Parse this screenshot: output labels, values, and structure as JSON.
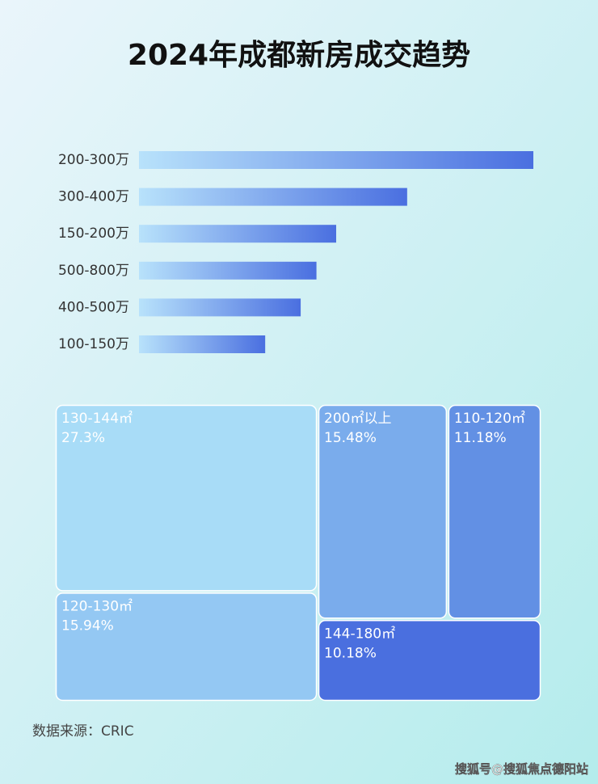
{
  "chart_data": [
    {
      "type": "bar",
      "orientation": "horizontal",
      "title": "2024年成都新房成交趋势",
      "categories": [
        "200-300万",
        "300-400万",
        "150-200万",
        "500-800万",
        "400-500万",
        "100-150万"
      ],
      "values": [
        100,
        68,
        50,
        45,
        41,
        32
      ],
      "color": "#4a6fe0",
      "xlim": [
        0,
        100
      ]
    },
    {
      "type": "treemap",
      "categories": [
        "130-144㎡",
        "120-130㎡",
        "200㎡以上",
        "110-120㎡",
        "144-180㎡"
      ],
      "values": [
        27.3,
        15.94,
        15.48,
        11.18,
        10.18
      ],
      "value_labels": [
        "27.3%",
        "15.94%",
        "15.48%",
        "11.18%",
        "10.18%"
      ],
      "colors": [
        "#a8dcf7",
        "#94c8f3",
        "#7aacec",
        "#6290e4",
        "#4a6fdf"
      ]
    }
  ],
  "source": "数据来源：CRIC",
  "watermark": "搜狐号@搜狐焦点德阳站"
}
